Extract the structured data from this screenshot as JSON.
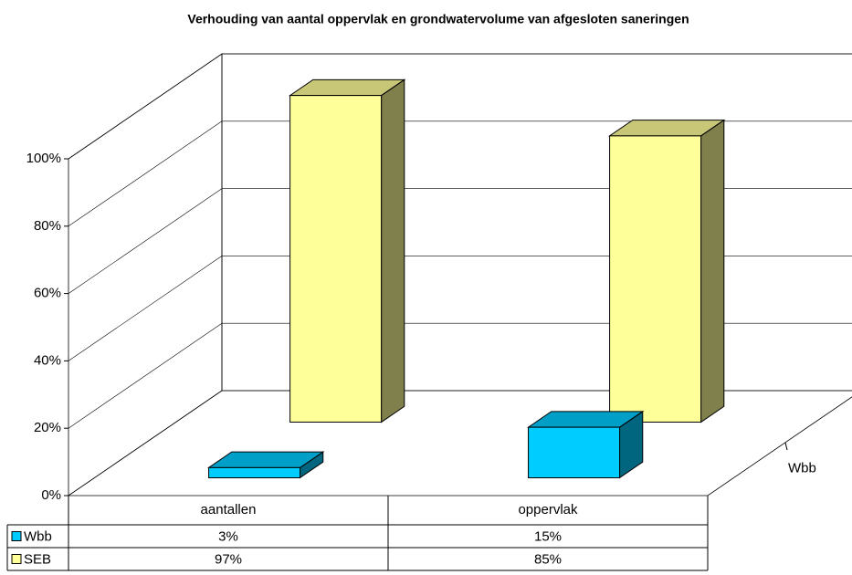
{
  "chart_data": {
    "type": "bar3d",
    "title": "Verhouding van aantal oppervlak en grondwatervolume van afgesloten saneringen",
    "categories": [
      "aantallen",
      "oppervlak"
    ],
    "series": [
      {
        "name": "Wbb",
        "color": "#00ccff",
        "values": [
          3,
          15
        ],
        "value_labels": [
          "3%",
          "15%"
        ]
      },
      {
        "name": "SEB",
        "color": "#ffff99",
        "values": [
          97,
          85
        ],
        "value_labels": [
          "97%",
          "85%"
        ]
      }
    ],
    "ylim": [
      0,
      100
    ],
    "yticks": [
      {
        "value": 0,
        "label": "0%"
      },
      {
        "value": 20,
        "label": "20%"
      },
      {
        "value": 40,
        "label": "40%"
      },
      {
        "value": 60,
        "label": "60%"
      },
      {
        "value": 80,
        "label": "80%"
      },
      {
        "value": 100,
        "label": "100%"
      }
    ],
    "grid": true
  }
}
